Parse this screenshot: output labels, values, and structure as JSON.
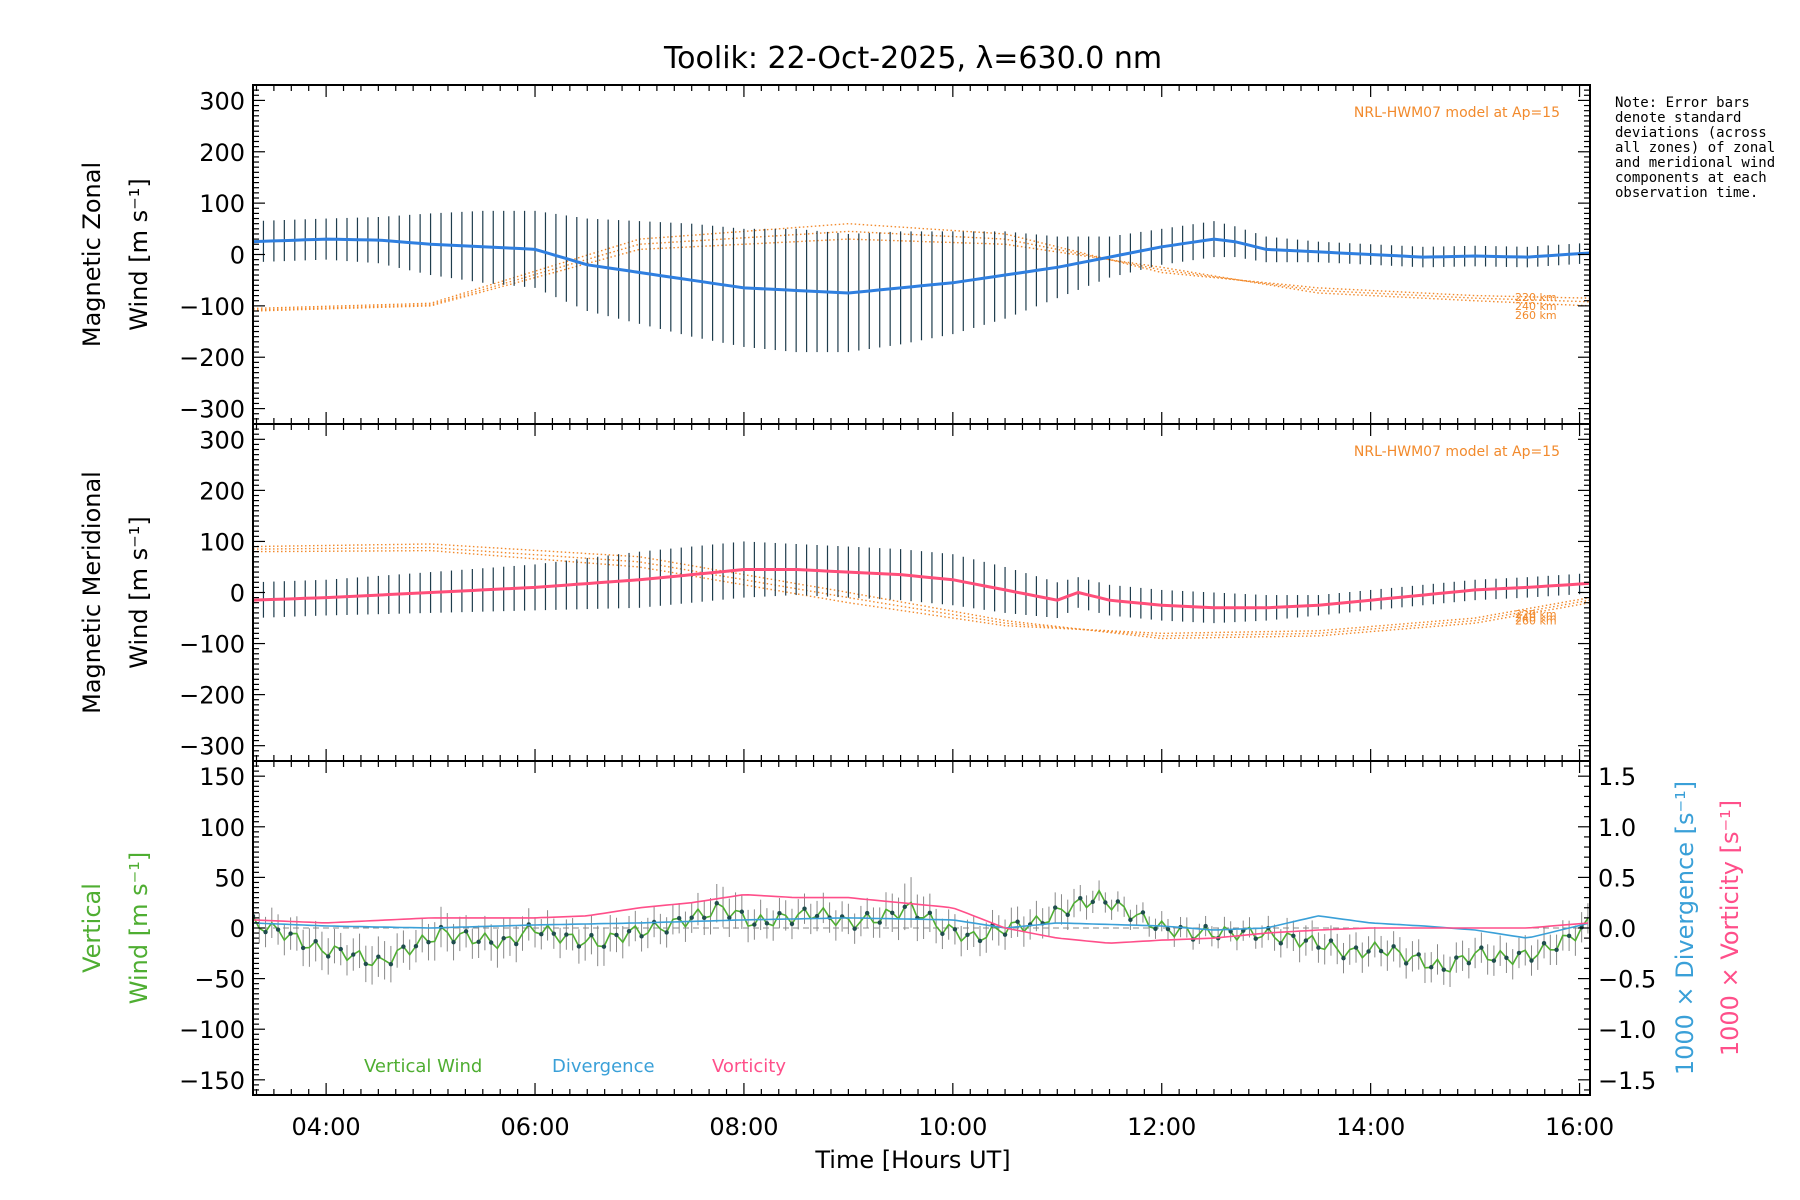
{
  "chart_data": {
    "title": "Toolik: 22-Oct-2025, λ=630.0 nm",
    "note": "Note: Error bars denote standard deviations (across all zones) of zonal and meridional wind components at each observation time.",
    "x_axis": {
      "label": "Time [Hours UT]",
      "range_hours": [
        3.3,
        16.1
      ],
      "ticks": [
        4,
        6,
        8,
        10,
        12,
        14,
        16
      ],
      "tick_labels": [
        "04:00",
        "06:00",
        "08:00",
        "10:00",
        "12:00",
        "14:00",
        "16:00"
      ]
    },
    "panels": [
      {
        "id": "zonal",
        "type": "line",
        "ylabel_line1": "Magnetic Zonal",
        "ylabel_line2": "Wind [m s⁻¹]",
        "ylim": [
          -330,
          330
        ],
        "yticks": [
          300,
          200,
          100,
          0,
          -100,
          -200,
          -300
        ],
        "model_label": "NRL-HWM07 model at Ap=15",
        "model_altitudes": [
          "220 km",
          "240 km",
          "260 km"
        ],
        "series": [
          {
            "name": "Mean zonal wind",
            "color": "#2f7fe0",
            "x": [
              3.3,
              4.0,
              4.5,
              5.0,
              5.5,
              6.0,
              6.5,
              7.0,
              7.5,
              8.0,
              8.5,
              9.0,
              9.5,
              10.0,
              10.5,
              11.0,
              11.5,
              12.0,
              12.5,
              12.7,
              13.0,
              13.5,
              14.0,
              14.5,
              15.0,
              15.5,
              16.1
            ],
            "y": [
              25,
              30,
              28,
              20,
              15,
              10,
              -20,
              -35,
              -50,
              -65,
              -70,
              -75,
              -65,
              -55,
              -40,
              -25,
              -5,
              15,
              30,
              25,
              10,
              5,
              0,
              -5,
              -3,
              -5,
              3
            ],
            "error": [
              40,
              40,
              45,
              60,
              70,
              75,
              90,
              100,
              110,
              115,
              120,
              115,
              110,
              100,
              85,
              60,
              40,
              35,
              35,
              30,
              25,
              20,
              20,
              20,
              20,
              20,
              20
            ]
          },
          {
            "name": "Model 220 km",
            "color": "#f28a2c",
            "x": [
              3.3,
              5.0,
              7.0,
              9.0,
              10.5,
              12.0,
              13.5,
              15.0,
              16.1
            ],
            "y": [
              -105,
              -95,
              30,
              60,
              40,
              -35,
              -65,
              -80,
              -85
            ]
          },
          {
            "name": "Model 240 km",
            "color": "#f28a2c",
            "x": [
              3.3,
              5.0,
              7.0,
              9.0,
              10.5,
              12.0,
              13.5,
              15.0,
              16.1
            ],
            "y": [
              -108,
              -98,
              20,
              45,
              30,
              -30,
              -70,
              -85,
              -92
            ]
          },
          {
            "name": "Model 260 km",
            "color": "#f28a2c",
            "x": [
              3.3,
              5.0,
              7.0,
              9.0,
              10.5,
              12.0,
              13.5,
              15.0,
              16.1
            ],
            "y": [
              -110,
              -100,
              10,
              30,
              20,
              -25,
              -75,
              -90,
              -100
            ]
          }
        ]
      },
      {
        "id": "meridional",
        "type": "line",
        "ylabel_line1": "Magnetic Meridional",
        "ylabel_line2": "Wind [m s⁻¹]",
        "ylim": [
          -330,
          330
        ],
        "yticks": [
          300,
          200,
          100,
          0,
          -100,
          -200,
          -300
        ],
        "model_label": "NRL-HWM07 model at Ap=15",
        "model_altitudes": [
          "220 km",
          "240 km",
          "260 km"
        ],
        "series": [
          {
            "name": "Mean meridional wind",
            "color": "#ff4f7a",
            "x": [
              3.3,
              4.0,
              5.0,
              6.0,
              7.0,
              7.5,
              8.0,
              8.5,
              9.0,
              9.5,
              10.0,
              10.5,
              11.0,
              11.2,
              11.5,
              12.0,
              12.5,
              13.0,
              13.5,
              14.0,
              14.5,
              15.0,
              15.5,
              16.1
            ],
            "y": [
              -15,
              -10,
              0,
              10,
              25,
              35,
              45,
              45,
              40,
              35,
              25,
              5,
              -15,
              0,
              -15,
              -25,
              -30,
              -30,
              -25,
              -15,
              -5,
              5,
              10,
              18
            ],
            "error": [
              35,
              35,
              40,
              45,
              55,
              55,
              55,
              50,
              50,
              50,
              50,
              45,
              35,
              30,
              30,
              30,
              30,
              25,
              20,
              20,
              20,
              20,
              20,
              20
            ]
          },
          {
            "name": "Model 220 km",
            "color": "#f28a2c",
            "x": [
              3.3,
              5.0,
              7.0,
              9.0,
              10.5,
              12.0,
              13.5,
              15.0,
              16.1
            ],
            "y": [
              90,
              95,
              70,
              0,
              -55,
              -90,
              -85,
              -60,
              -20
            ]
          },
          {
            "name": "Model 240 km",
            "color": "#f28a2c",
            "x": [
              3.3,
              5.0,
              7.0,
              9.0,
              10.5,
              12.0,
              13.5,
              15.0,
              16.1
            ],
            "y": [
              85,
              88,
              60,
              -10,
              -60,
              -85,
              -80,
              -55,
              -15
            ]
          },
          {
            "name": "Model 260 km",
            "color": "#f28a2c",
            "x": [
              3.3,
              5.0,
              7.0,
              9.0,
              10.5,
              12.0,
              13.5,
              15.0,
              16.1
            ],
            "y": [
              80,
              82,
              50,
              -20,
              -65,
              -80,
              -75,
              -50,
              -10
            ]
          }
        ]
      },
      {
        "id": "vertical",
        "type": "line",
        "ylabel_line1": "Vertical",
        "ylabel_line2": "Wind [m s⁻¹]",
        "ylim": [
          -165,
          165
        ],
        "yticks": [
          150,
          100,
          50,
          0,
          -50,
          -100,
          -150
        ],
        "y2lim": [
          -1.65,
          1.65
        ],
        "y2ticks": [
          1.5,
          1.0,
          0.5,
          0.0,
          -0.5,
          -1.0,
          -1.5
        ],
        "y2ticklabels": [
          "1.5",
          "1.0",
          "0.5",
          "0.0",
          "−0.5",
          "−1.0",
          "−1.5"
        ],
        "y2label_div": "1000 × Divergence [s⁻¹]",
        "y2label_vort": "1000 × Vorticity [s⁻¹]",
        "legend": [
          "Vertical Wind",
          "Divergence",
          "Vorticity"
        ],
        "legend_colors": [
          "#4fae32",
          "#3aa0d8",
          "#ff4f8a"
        ],
        "series": [
          {
            "name": "Vertical Wind",
            "color": "#4fae32",
            "axis": "left",
            "x": [
              3.3,
              3.6,
              3.9,
              4.2,
              4.5,
              4.8,
              5.1,
              5.4,
              5.7,
              6.0,
              6.3,
              6.6,
              6.9,
              7.2,
              7.5,
              7.8,
              8.1,
              8.4,
              8.7,
              9.0,
              9.3,
              9.6,
              9.9,
              10.2,
              10.5,
              10.8,
              11.1,
              11.4,
              11.7,
              12.0,
              12.3,
              12.6,
              12.9,
              13.2,
              13.5,
              13.8,
              14.1,
              14.4,
              14.7,
              15.0,
              15.3,
              15.6,
              15.9,
              16.1
            ],
            "y": [
              5,
              -5,
              -20,
              -25,
              -35,
              -20,
              -5,
              -10,
              -15,
              0,
              -10,
              -15,
              -5,
              0,
              10,
              20,
              5,
              10,
              15,
              5,
              10,
              20,
              0,
              -10,
              0,
              5,
              20,
              30,
              15,
              0,
              -5,
              -5,
              -5,
              -10,
              -15,
              -25,
              -20,
              -30,
              -40,
              -25,
              -30,
              -25,
              -10,
              5
            ],
            "error": [
              15,
              15,
              20,
              15,
              20,
              15,
              20,
              15,
              20,
              15,
              15,
              20,
              15,
              15,
              15,
              20,
              15,
              15,
              15,
              15,
              15,
              25,
              15,
              15,
              15,
              15,
              15,
              10,
              10,
              10,
              10,
              10,
              10,
              15,
              15,
              15,
              15,
              15,
              15,
              15,
              15,
              15,
              15,
              15
            ]
          },
          {
            "name": "Divergence",
            "color": "#3aa0d8",
            "axis": "right",
            "x": [
              3.3,
              4.0,
              5.0,
              6.0,
              7.0,
              8.0,
              9.0,
              10.0,
              10.5,
              11.0,
              12.0,
              12.5,
              13.0,
              13.5,
              14.0,
              14.5,
              15.0,
              15.5,
              16.1
            ],
            "y": [
              0.05,
              0.02,
              0.0,
              0.03,
              0.05,
              0.08,
              0.1,
              0.08,
              0.0,
              0.05,
              0.02,
              -0.02,
              0.0,
              0.12,
              0.05,
              0.02,
              -0.02,
              -0.1,
              0.05
            ]
          },
          {
            "name": "Vorticity",
            "color": "#ff4f8a",
            "axis": "right",
            "x": [
              3.3,
              4.0,
              5.0,
              6.0,
              6.5,
              7.0,
              7.5,
              8.0,
              8.5,
              9.0,
              9.5,
              10.0,
              10.5,
              11.0,
              11.5,
              12.0,
              12.5,
              13.0,
              13.5,
              14.0,
              14.5,
              15.0,
              15.5,
              16.1
            ],
            "y": [
              0.08,
              0.05,
              0.1,
              0.1,
              0.12,
              0.2,
              0.25,
              0.33,
              0.3,
              0.3,
              0.25,
              0.2,
              0.0,
              -0.1,
              -0.15,
              -0.12,
              -0.1,
              -0.05,
              -0.02,
              0.0,
              0.0,
              0.0,
              0.0,
              0.05
            ]
          }
        ]
      }
    ]
  }
}
